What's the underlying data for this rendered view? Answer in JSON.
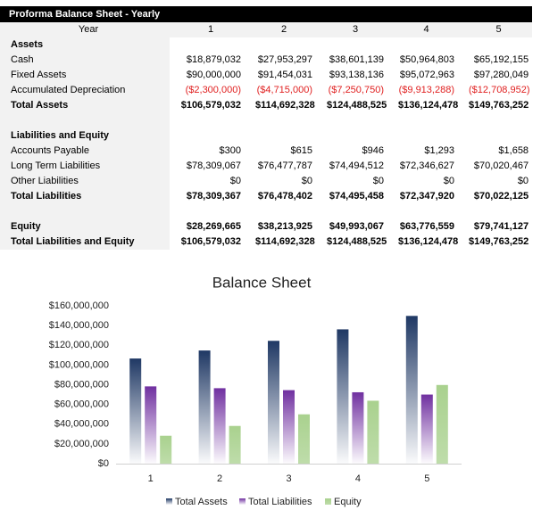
{
  "table": {
    "title": "Proforma Balance Sheet - Yearly",
    "header": [
      "Year",
      "1",
      "2",
      "3",
      "4",
      "5"
    ],
    "rows": [
      [
        "Assets"
      ],
      [
        "Cash",
        "$18,879,032",
        "$27,953,297",
        "$38,601,139",
        "$50,964,803",
        "$65,192,155"
      ],
      [
        "Fixed Assets",
        "$90,000,000",
        "$91,454,031",
        "$93,138,136",
        "$95,072,963",
        "$97,280,049"
      ],
      [
        "Accumulated Depreciation",
        "($2,300,000)",
        "($4,715,000)",
        "($7,250,750)",
        "($9,913,288)",
        "($12,708,952)"
      ],
      [
        "Total Assets",
        "$106,579,032",
        "$114,692,328",
        "$124,488,525",
        "$136,124,478",
        "$149,763,252"
      ],
      [
        "Liabilities and Equity"
      ],
      [
        "Accounts Payable",
        "$300",
        "$615",
        "$946",
        "$1,293",
        "$1,658"
      ],
      [
        "Long Term Liabilities",
        "$78,309,067",
        "$76,477,787",
        "$74,494,512",
        "$72,346,627",
        "$70,020,467"
      ],
      [
        "Other Liabilities",
        "$0",
        "$0",
        "$0",
        "$0",
        "$0"
      ],
      [
        "Total Liabilities",
        "$78,309,367",
        "$76,478,402",
        "$74,495,458",
        "$72,347,920",
        "$70,022,125"
      ],
      [
        "Equity",
        "$28,269,665",
        "$38,213,925",
        "$49,993,067",
        "$63,776,559",
        "$79,741,127"
      ],
      [
        "Total Liabilities and Equity",
        "$106,579,032",
        "$114,692,328",
        "$124,488,525",
        "$136,124,478",
        "$149,763,252"
      ]
    ]
  },
  "chart_data": {
    "type": "bar",
    "title": "Balance Sheet",
    "categories": [
      "1",
      "2",
      "3",
      "4",
      "5"
    ],
    "series": [
      {
        "name": "Total Assets",
        "color": "#1f3864",
        "values": [
          106579032,
          114692328,
          124488525,
          136124478,
          149763252
        ]
      },
      {
        "name": "Total Liabilities",
        "color": "#7030a0",
        "values": [
          78309367,
          76478402,
          74495458,
          72347920,
          70022125
        ]
      },
      {
        "name": "Equity",
        "color": "#a9d18e",
        "values": [
          28269665,
          38213925,
          49993067,
          63776559,
          79741127
        ]
      }
    ],
    "ylim": [
      0,
      160000000
    ],
    "yticks": [
      {
        "value": 0,
        "label": "$0"
      },
      {
        "value": 20000000,
        "label": "$20,000,000"
      },
      {
        "value": 40000000,
        "label": "$40,000,000"
      },
      {
        "value": 60000000,
        "label": "$60,000,000"
      },
      {
        "value": 80000000,
        "label": "$80,000,000"
      },
      {
        "value": 100000000,
        "label": "$100,000,000"
      },
      {
        "value": 120000000,
        "label": "$120,000,000"
      },
      {
        "value": 140000000,
        "label": "$140,000,000"
      },
      {
        "value": 160000000,
        "label": "$160,000,000"
      }
    ],
    "grid": false,
    "legend": "bottom"
  }
}
